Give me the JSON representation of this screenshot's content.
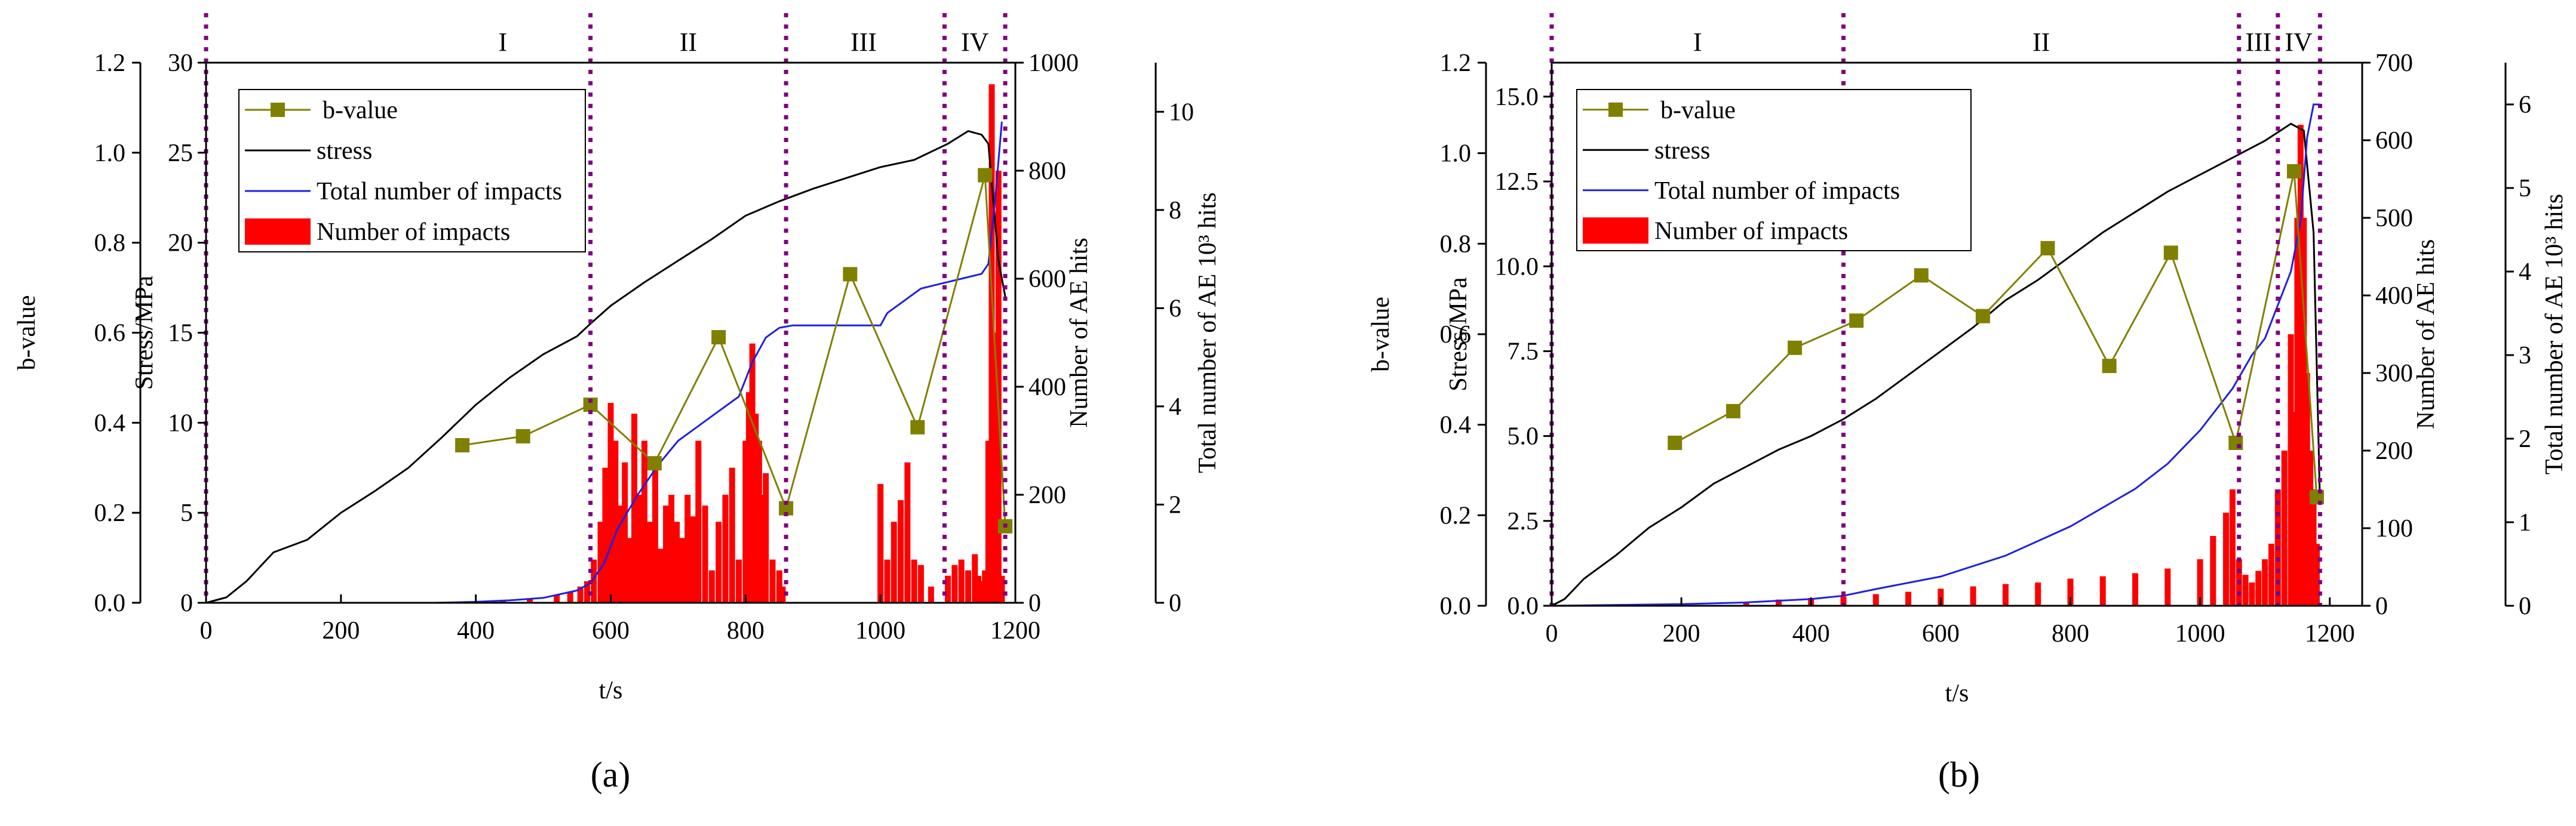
{
  "colors": {
    "bvalue": "#808000",
    "stress": "#000000",
    "total": "#2020e0",
    "impacts": "#ff0000",
    "phase_line": "#800080"
  },
  "legend_labels": {
    "bvalue": "b-value",
    "stress": "stress",
    "total": "Total number of impacts",
    "impacts": "Number of impacts"
  },
  "axis_labels": {
    "b": "b-value",
    "stress": "Stress/MPa",
    "ae": "Number of AE hits",
    "total": "Total number of AE 10³ hits",
    "x": "t/s"
  },
  "chart_data": [
    {
      "type": "bar",
      "panel": "a",
      "caption": "(a)",
      "xlim": [
        0,
        1200
      ],
      "x_ticks": [
        0,
        200,
        400,
        600,
        800,
        1000,
        1200
      ],
      "b_axis": {
        "label": "b-value",
        "range": [
          0,
          1.2
        ],
        "ticks": [
          "0.0",
          "0.2",
          "0.4",
          "0.6",
          "0.8",
          "1.0",
          "1.2"
        ]
      },
      "stress_axis": {
        "label": "Stress/MPa",
        "range": [
          0,
          30
        ],
        "ticks": [
          "0",
          "5",
          "10",
          "15",
          "20",
          "25",
          "30"
        ]
      },
      "ae_axis": {
        "label": "Number of AE hits",
        "range": [
          0,
          1000
        ],
        "ticks": [
          "0",
          "200",
          "400",
          "600",
          "800",
          "1000"
        ]
      },
      "total_axis": {
        "label": "Total number of AE 10³ hits",
        "range": [
          0,
          11
        ],
        "ticks": [
          "0",
          "2",
          "4",
          "6",
          "8",
          "10"
        ]
      },
      "phase_lines": [
        0,
        570,
        860,
        1095,
        1185
      ],
      "phases": [
        {
          "label": "I",
          "x": 440
        },
        {
          "label": "II",
          "x": 715
        },
        {
          "label": "III",
          "x": 975
        },
        {
          "label": "IV",
          "x": 1140
        }
      ],
      "series": [
        {
          "name": "b-value",
          "axis": "b",
          "kind": "line-marker",
          "x": [
            380,
            470,
            570,
            665,
            760,
            860,
            955,
            1055,
            1155,
            1185
          ],
          "y": [
            0.35,
            0.37,
            0.44,
            0.31,
            0.59,
            0.21,
            0.73,
            0.39,
            0.95,
            0.17
          ]
        },
        {
          "name": "stress",
          "axis": "stress",
          "kind": "line",
          "x": [
            0,
            30,
            60,
            100,
            150,
            200,
            250,
            300,
            350,
            400,
            450,
            500,
            550,
            570,
            600,
            650,
            700,
            750,
            800,
            850,
            900,
            950,
            1000,
            1050,
            1100,
            1130,
            1150,
            1160,
            1175,
            1185
          ],
          "y": [
            0,
            0.3,
            1.2,
            2.8,
            3.5,
            5.0,
            6.2,
            7.5,
            9.2,
            11.0,
            12.5,
            13.8,
            14.8,
            15.5,
            16.5,
            17.8,
            19.0,
            20.2,
            21.5,
            22.3,
            23.0,
            23.6,
            24.2,
            24.6,
            25.5,
            26.2,
            26.0,
            25.5,
            19.0,
            17.0
          ]
        },
        {
          "name": "Total number of impacts",
          "axis": "total",
          "kind": "line",
          "x": [
            340,
            400,
            450,
            500,
            550,
            570,
            590,
            610,
            640,
            670,
            700,
            730,
            760,
            790,
            810,
            830,
            850,
            870,
            900,
            950,
            1000,
            1010,
            1040,
            1060,
            1090,
            1120,
            1150,
            1160,
            1170,
            1180
          ],
          "y": [
            0,
            0.02,
            0.05,
            0.1,
            0.25,
            0.4,
            0.8,
            1.5,
            2.2,
            2.8,
            3.3,
            3.6,
            3.9,
            4.2,
            4.9,
            5.4,
            5.6,
            5.65,
            5.65,
            5.65,
            5.65,
            5.9,
            6.2,
            6.4,
            6.5,
            6.6,
            6.7,
            6.9,
            8.2,
            9.8
          ]
        },
        {
          "name": "Number of impacts",
          "axis": "ae",
          "kind": "bar",
          "x": [
            400,
            440,
            480,
            520,
            540,
            555,
            565,
            575,
            585,
            592,
            600,
            607,
            614,
            621,
            628,
            635,
            642,
            650,
            658,
            666,
            674,
            682,
            690,
            698,
            706,
            714,
            722,
            730,
            740,
            750,
            760,
            770,
            780,
            790,
            800,
            805,
            810,
            815,
            820,
            825,
            830,
            840,
            850,
            855,
            1000,
            1010,
            1020,
            1030,
            1040,
            1050,
            1060,
            1075,
            1100,
            1110,
            1120,
            1130,
            1140,
            1145,
            1150,
            1155,
            1160,
            1165,
            1170,
            1175,
            1180
          ],
          "y": [
            3,
            4,
            8,
            15,
            20,
            30,
            40,
            80,
            150,
            250,
            370,
            300,
            180,
            260,
            120,
            350,
            200,
            300,
            150,
            250,
            100,
            180,
            200,
            150,
            120,
            200,
            160,
            300,
            180,
            60,
            150,
            200,
            250,
            80,
            300,
            390,
            480,
            350,
            300,
            200,
            240,
            80,
            60,
            30,
            220,
            80,
            150,
            190,
            260,
            80,
            70,
            30,
            50,
            70,
            80,
            60,
            90,
            50,
            40,
            60,
            300,
            960,
            500,
            800,
            50
          ]
        }
      ]
    },
    {
      "type": "bar",
      "panel": "b",
      "caption": "(b)",
      "xlim": [
        0,
        1250
      ],
      "x_ticks": [
        0,
        200,
        400,
        600,
        800,
        1000,
        1200
      ],
      "b_axis": {
        "label": "b-value",
        "range": [
          0,
          1.2
        ],
        "ticks": [
          "0.0",
          "0.2",
          "0.4",
          "0.6",
          "0.8",
          "1.0",
          "1.2"
        ]
      },
      "stress_axis": {
        "label": "Stress/MPa",
        "range": [
          0,
          16
        ],
        "ticks": [
          "0.0",
          "2.5",
          "5.0",
          "7.5",
          "10.0",
          "12.5",
          "15.0"
        ]
      },
      "ae_axis": {
        "label": "Number of AE hits",
        "range": [
          0,
          700
        ],
        "ticks": [
          "0",
          "100",
          "200",
          "300",
          "400",
          "500",
          "600",
          "700"
        ]
      },
      "total_axis": {
        "label": "Total number of AE 10³ hits",
        "range": [
          0,
          6.5
        ],
        "ticks": [
          "0",
          "1",
          "2",
          "3",
          "4",
          "5",
          "6"
        ]
      },
      "phase_lines": [
        0,
        450,
        1060,
        1120,
        1185
      ],
      "phases": [
        {
          "label": "I",
          "x": 225
        },
        {
          "label": "II",
          "x": 755
        },
        {
          "label": "III",
          "x": 1090
        },
        {
          "label": "IV",
          "x": 1152
        }
      ],
      "series": [
        {
          "name": "b-value",
          "axis": "b",
          "kind": "line-marker",
          "x": [
            190,
            280,
            375,
            470,
            570,
            665,
            765,
            860,
            955,
            1055,
            1145,
            1180
          ],
          "y": [
            0.36,
            0.43,
            0.57,
            0.63,
            0.73,
            0.64,
            0.79,
            0.53,
            0.78,
            0.36,
            0.96,
            0.24
          ]
        },
        {
          "name": "stress",
          "axis": "stress",
          "kind": "line",
          "x": [
            0,
            20,
            50,
            100,
            150,
            200,
            250,
            300,
            350,
            400,
            450,
            500,
            550,
            600,
            650,
            700,
            750,
            800,
            850,
            900,
            950,
            1000,
            1050,
            1100,
            1140,
            1160,
            1175,
            1185
          ],
          "y": [
            0,
            0.2,
            0.8,
            1.5,
            2.3,
            2.9,
            3.6,
            4.1,
            4.6,
            5.0,
            5.5,
            6.1,
            6.8,
            7.5,
            8.2,
            9.0,
            9.6,
            10.3,
            11.0,
            11.6,
            12.2,
            12.7,
            13.2,
            13.7,
            14.2,
            14.0,
            11.0,
            3.0
          ]
        },
        {
          "name": "Total number of impacts",
          "axis": "total",
          "kind": "line",
          "x": [
            0,
            100,
            200,
            300,
            400,
            450,
            500,
            600,
            700,
            800,
            900,
            950,
            1000,
            1050,
            1080,
            1100,
            1120,
            1140,
            1155,
            1165,
            1175,
            1185
          ],
          "y": [
            0,
            0.01,
            0.02,
            0.04,
            0.08,
            0.12,
            0.2,
            0.35,
            0.6,
            0.95,
            1.4,
            1.7,
            2.1,
            2.6,
            3.0,
            3.2,
            3.6,
            4.0,
            4.6,
            5.6,
            6.0,
            6.0
          ]
        },
        {
          "name": "Number of impacts",
          "axis": "ae",
          "kind": "bar",
          "x": [
            300,
            350,
            400,
            450,
            500,
            550,
            600,
            650,
            700,
            750,
            800,
            850,
            900,
            950,
            1000,
            1020,
            1040,
            1050,
            1060,
            1070,
            1080,
            1090,
            1100,
            1110,
            1120,
            1130,
            1140,
            1145,
            1150,
            1155,
            1160,
            1165,
            1170,
            1175,
            1180
          ],
          "y": [
            5,
            8,
            10,
            12,
            15,
            18,
            22,
            25,
            28,
            30,
            35,
            38,
            42,
            48,
            60,
            90,
            120,
            150,
            60,
            40,
            30,
            45,
            60,
            80,
            150,
            200,
            350,
            250,
            500,
            620,
            500,
            300,
            200,
            150,
            80
          ]
        }
      ]
    }
  ]
}
